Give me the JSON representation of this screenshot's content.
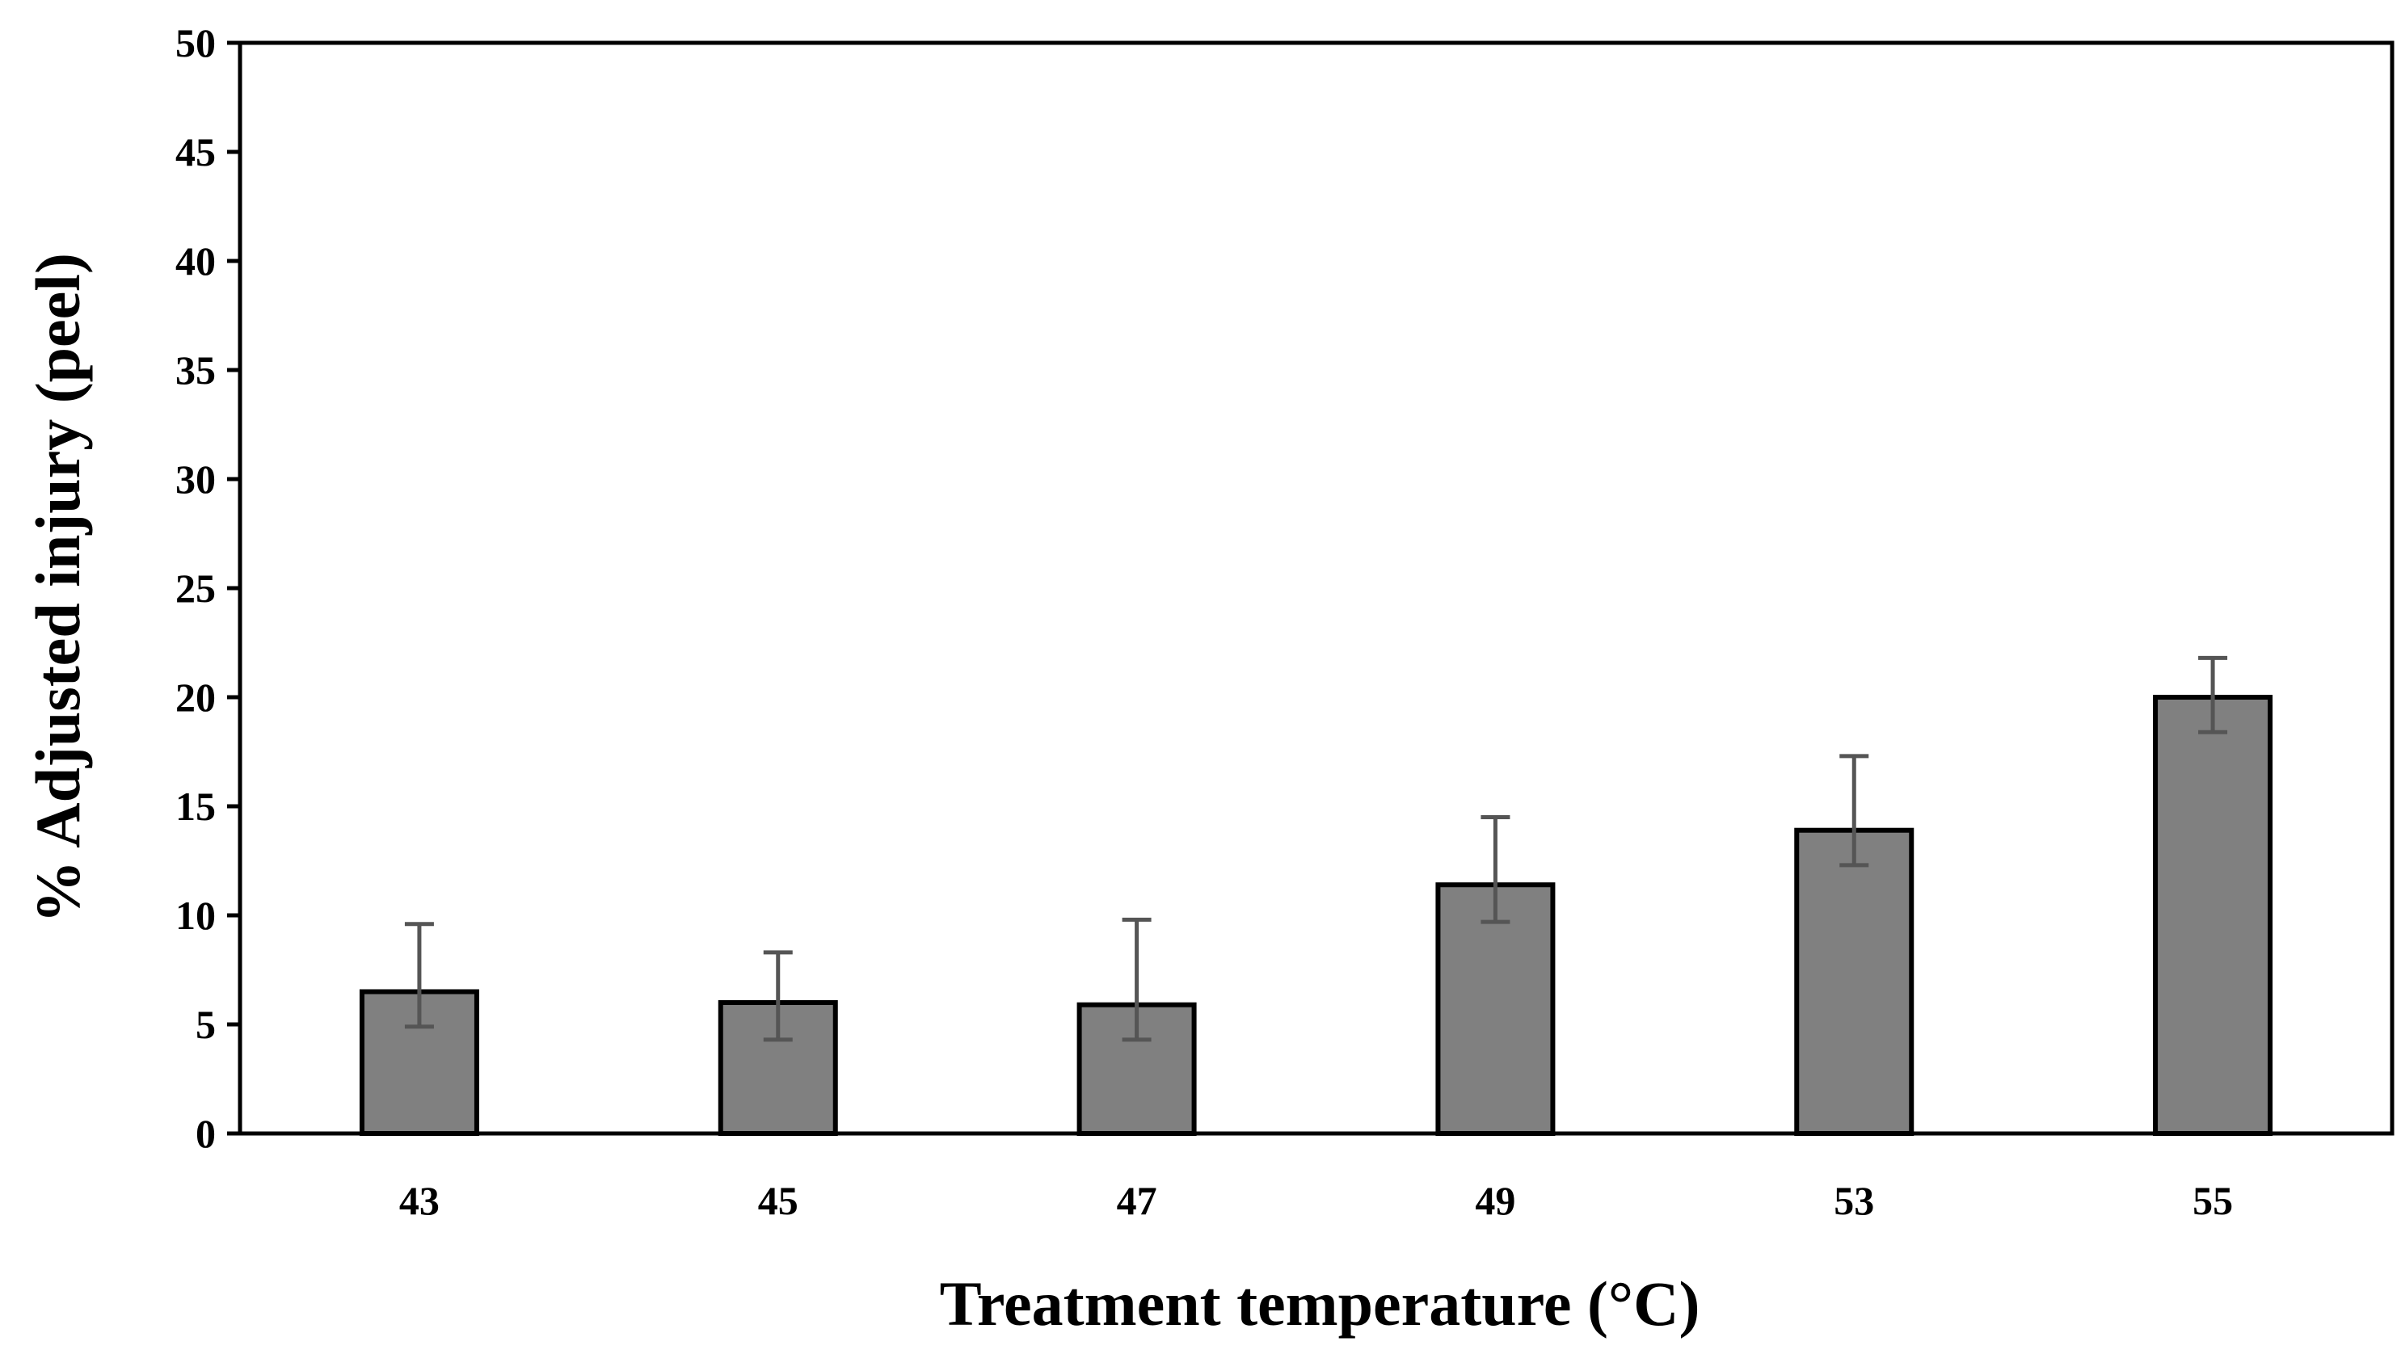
{
  "chart_data": {
    "type": "bar",
    "title": "",
    "xlabel": "Treatment temperature (°C)",
    "ylabel": "% Adjusted injury (peel)",
    "ylim": [
      0,
      50
    ],
    "yticks": [
      0,
      5,
      10,
      15,
      20,
      25,
      30,
      35,
      40,
      45,
      50
    ],
    "categories": [
      "43",
      "45",
      "47",
      "49",
      "53",
      "55"
    ],
    "values": [
      6.5,
      6.0,
      5.9,
      11.4,
      13.9,
      20.0
    ],
    "error_lower": [
      1.6,
      1.7,
      1.6,
      1.7,
      1.6,
      1.6
    ],
    "error_upper": [
      3.1,
      2.3,
      3.9,
      3.1,
      3.4,
      1.8
    ],
    "grid": false,
    "legend": false,
    "colors": {
      "bar": "#808080",
      "error": "#555555",
      "axis": "#000000"
    }
  }
}
